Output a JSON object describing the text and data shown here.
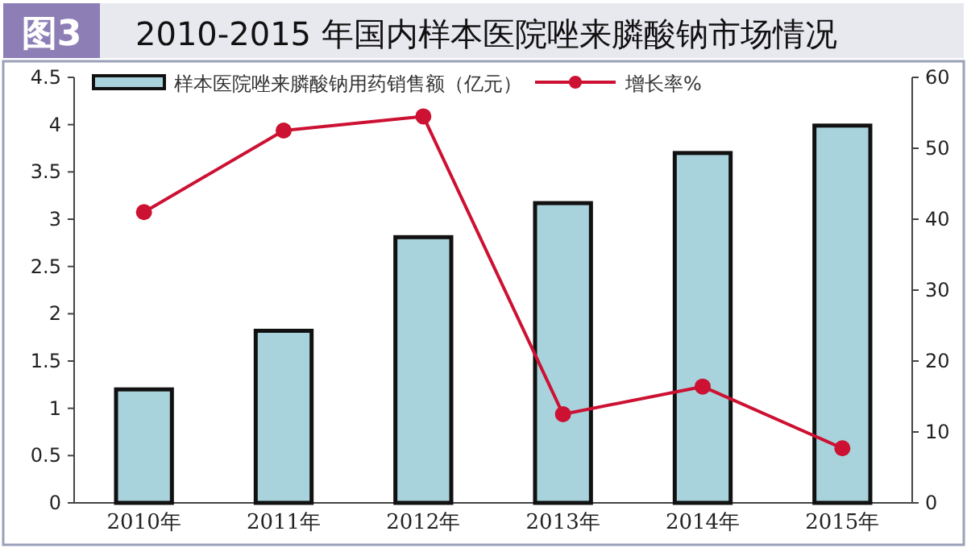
{
  "chart_data": {
    "type": "bar",
    "title": "2010-2015 年国内样本医院唑来膦酸钠市场情况",
    "annotations": [
      "图3"
    ],
    "categories": [
      "2010年",
      "2011年",
      "2012年",
      "2013年",
      "2014年",
      "2015年"
    ],
    "series": [
      {
        "name": "样本医院唑来膦酸钠用药销售额（亿元）",
        "color": "#a9d3dc",
        "values": [
          1.2,
          1.82,
          2.81,
          3.17,
          3.7,
          3.99
        ]
      },
      {
        "name": "增长率%",
        "type": "line",
        "axis": "y2",
        "color": "#cc1133",
        "marker": "circle",
        "values": [
          41,
          52.5,
          54.5,
          12.5,
          16.4,
          7.7
        ]
      }
    ],
    "ylim": [
      0,
      4.5
    ],
    "yticks": [
      0,
      0.5,
      1,
      1.5,
      2,
      2.5,
      3,
      3.5,
      4,
      4.5
    ],
    "y2lim": [
      0,
      60
    ],
    "y2ticks": [
      0,
      10,
      20,
      30,
      40,
      50,
      60
    ],
    "legend": "top",
    "grid": false
  }
}
